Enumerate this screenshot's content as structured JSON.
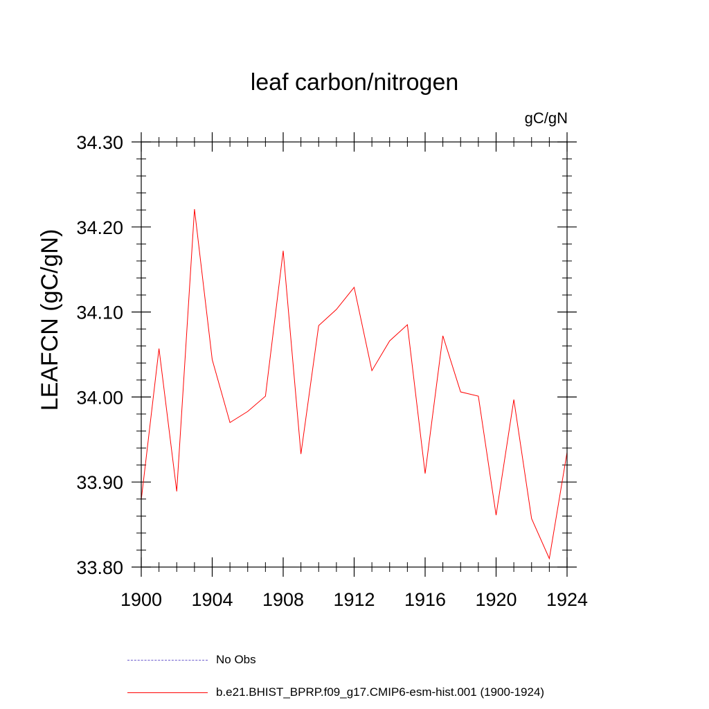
{
  "chart_data": {
    "type": "line",
    "title": "leaf carbon/nitrogen",
    "units_label": "gC/gN",
    "ylabel": "LEAFCN  (gC/gN)",
    "xlabel": "",
    "xlim": [
      1900,
      1924
    ],
    "ylim": [
      33.8,
      34.3
    ],
    "x_ticks": [
      1900,
      1904,
      1908,
      1912,
      1916,
      1920,
      1924
    ],
    "x_tick_labels": [
      "1900",
      "1904",
      "1908",
      "1912",
      "1916",
      "1920",
      "1924"
    ],
    "y_ticks": [
      33.8,
      33.9,
      34.0,
      34.1,
      34.2,
      34.3
    ],
    "y_tick_labels": [
      "33.80",
      "33.90",
      "34.00",
      "34.10",
      "34.20",
      "34.30"
    ],
    "grid": false,
    "legend_position": "bottom",
    "series": [
      {
        "name": "No Obs",
        "color": "#6a5acd",
        "style": "dashed",
        "x": [],
        "y": []
      },
      {
        "name": "b.e21.BHIST_BPRP.f09_g17.CMIP6-esm-hist.001 (1900-1924)",
        "color": "#ff0000",
        "style": "solid",
        "x": [
          1900,
          1901,
          1902,
          1903,
          1904,
          1905,
          1906,
          1907,
          1908,
          1909,
          1910,
          1911,
          1912,
          1913,
          1914,
          1915,
          1916,
          1917,
          1918,
          1919,
          1920,
          1921,
          1922,
          1923,
          1924
        ],
        "y": [
          33.879,
          34.057,
          33.889,
          34.221,
          34.044,
          33.97,
          33.983,
          34.001,
          34.172,
          33.933,
          34.084,
          34.103,
          34.129,
          34.031,
          34.066,
          34.085,
          33.91,
          34.072,
          34.006,
          34.001,
          33.861,
          33.997,
          33.857,
          33.81,
          33.935
        ]
      }
    ]
  }
}
